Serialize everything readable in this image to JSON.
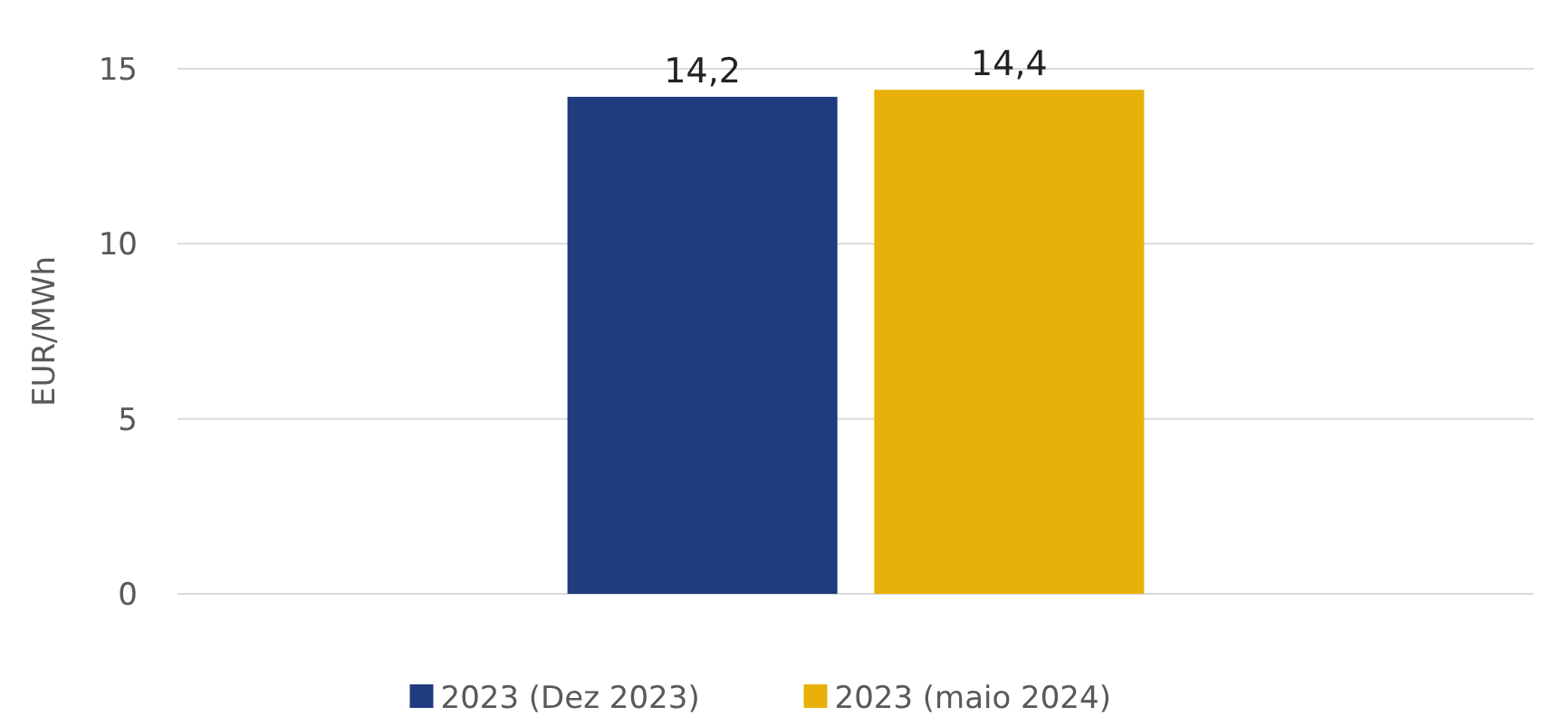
{
  "chart_data": {
    "type": "bar",
    "ylabel": "EUR/MWh",
    "categories": [
      null
    ],
    "series": [
      {
        "name": "2023 (Dez 2023)",
        "color": "#203c7f",
        "values": [
          14.2
        ],
        "value_labels": [
          "14,2"
        ]
      },
      {
        "name": "2023 (maio 2024)",
        "color": "#e7b10a",
        "values": [
          14.4
        ],
        "value_labels": [
          "14,4"
        ]
      }
    ],
    "ylim": [
      0,
      15
    ],
    "yticks": [
      0,
      5,
      10,
      15
    ],
    "grid": "y",
    "legend": "bottom"
  }
}
